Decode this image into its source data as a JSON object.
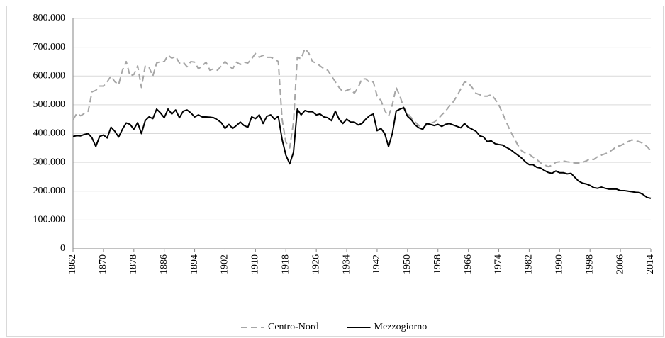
{
  "chart_data": {
    "type": "line",
    "x": [
      1862,
      1863,
      1864,
      1865,
      1866,
      1867,
      1868,
      1869,
      1870,
      1871,
      1872,
      1873,
      1874,
      1875,
      1876,
      1877,
      1878,
      1879,
      1880,
      1881,
      1882,
      1883,
      1884,
      1885,
      1886,
      1887,
      1888,
      1889,
      1890,
      1891,
      1892,
      1893,
      1894,
      1895,
      1896,
      1897,
      1898,
      1899,
      1900,
      1901,
      1902,
      1903,
      1904,
      1905,
      1906,
      1907,
      1908,
      1909,
      1910,
      1911,
      1912,
      1913,
      1914,
      1915,
      1916,
      1917,
      1918,
      1919,
      1920,
      1921,
      1922,
      1923,
      1924,
      1925,
      1926,
      1927,
      1928,
      1929,
      1930,
      1931,
      1932,
      1933,
      1934,
      1935,
      1936,
      1937,
      1938,
      1939,
      1940,
      1941,
      1942,
      1943,
      1944,
      1945,
      1946,
      1947,
      1948,
      1949,
      1950,
      1951,
      1952,
      1953,
      1954,
      1955,
      1956,
      1957,
      1958,
      1959,
      1960,
      1961,
      1962,
      1963,
      1964,
      1965,
      1966,
      1967,
      1968,
      1969,
      1970,
      1971,
      1972,
      1973,
      1974,
      1975,
      1976,
      1977,
      1978,
      1979,
      1980,
      1981,
      1982,
      1983,
      1984,
      1985,
      1986,
      1987,
      1988,
      1989,
      1990,
      1991,
      1992,
      1993,
      1994,
      1995,
      1996,
      1997,
      1998,
      1999,
      2000,
      2001,
      2002,
      2003,
      2004,
      2005,
      2006,
      2007,
      2008,
      2009,
      2010,
      2011,
      2012,
      2013,
      2014
    ],
    "series": [
      {
        "name": "Centro-Nord",
        "color": "#a6a6a6",
        "dashed": true,
        "values": [
          448000,
          470000,
          462000,
          470000,
          478000,
          545000,
          550000,
          565000,
          565000,
          580000,
          600000,
          580000,
          570000,
          620000,
          650000,
          600000,
          605000,
          635000,
          560000,
          635000,
          630000,
          600000,
          645000,
          650000,
          650000,
          672000,
          662000,
          668000,
          645000,
          648000,
          632000,
          650000,
          648000,
          625000,
          635000,
          648000,
          620000,
          625000,
          620000,
          635000,
          650000,
          635000,
          625000,
          648000,
          640000,
          648000,
          645000,
          660000,
          678000,
          665000,
          672000,
          665000,
          665000,
          660000,
          650000,
          450000,
          370000,
          350000,
          440000,
          665000,
          660000,
          695000,
          680000,
          650000,
          645000,
          635000,
          625000,
          620000,
          600000,
          580000,
          560000,
          545000,
          550000,
          555000,
          540000,
          560000,
          590000,
          590000,
          578000,
          580000,
          530000,
          515000,
          480000,
          460000,
          500000,
          560000,
          530000,
          490000,
          470000,
          455000,
          440000,
          428000,
          420000,
          430000,
          435000,
          440000,
          450000,
          465000,
          478000,
          495000,
          510000,
          530000,
          555000,
          580000,
          575000,
          560000,
          540000,
          535000,
          530000,
          530000,
          535000,
          520000,
          500000,
          470000,
          440000,
          410000,
          385000,
          360000,
          340000,
          332000,
          328000,
          318000,
          310000,
          298000,
          292000,
          285000,
          290000,
          300000,
          302000,
          305000,
          302000,
          300000,
          298000,
          298000,
          300000,
          305000,
          312000,
          310000,
          320000,
          325000,
          330000,
          335000,
          345000,
          355000,
          358000,
          365000,
          372000,
          378000,
          375000,
          372000,
          365000,
          355000,
          340000
        ]
      },
      {
        "name": "Mezzogiorno",
        "color": "#000000",
        "dashed": false,
        "values": [
          390000,
          393000,
          392000,
          397000,
          400000,
          385000,
          355000,
          390000,
          395000,
          385000,
          422000,
          408000,
          388000,
          415000,
          437000,
          432000,
          415000,
          438000,
          400000,
          445000,
          458000,
          452000,
          485000,
          472000,
          455000,
          485000,
          468000,
          482000,
          455000,
          478000,
          482000,
          472000,
          458000,
          465000,
          458000,
          458000,
          457000,
          455000,
          448000,
          438000,
          418000,
          432000,
          418000,
          428000,
          440000,
          428000,
          422000,
          458000,
          452000,
          465000,
          435000,
          460000,
          465000,
          450000,
          460000,
          380000,
          325000,
          295000,
          335000,
          485000,
          465000,
          480000,
          476000,
          476000,
          465000,
          468000,
          458000,
          455000,
          445000,
          478000,
          450000,
          435000,
          450000,
          440000,
          440000,
          430000,
          435000,
          450000,
          462000,
          468000,
          410000,
          418000,
          400000,
          355000,
          400000,
          478000,
          485000,
          490000,
          460000,
          448000,
          430000,
          420000,
          415000,
          435000,
          432000,
          428000,
          432000,
          425000,
          432000,
          435000,
          430000,
          425000,
          420000,
          435000,
          422000,
          415000,
          408000,
          392000,
          388000,
          372000,
          375000,
          365000,
          362000,
          360000,
          352000,
          345000,
          335000,
          325000,
          315000,
          302000,
          292000,
          292000,
          283000,
          280000,
          272000,
          265000,
          262000,
          270000,
          264000,
          264000,
          260000,
          262000,
          248000,
          235000,
          228000,
          225000,
          220000,
          212000,
          210000,
          214000,
          210000,
          207000,
          207000,
          207000,
          202000,
          202000,
          200000,
          198000,
          196000,
          195000,
          188000,
          178000,
          175000
        ]
      }
    ],
    "xlim": [
      1862,
      2014
    ],
    "xticks": [
      1862,
      1870,
      1878,
      1886,
      1894,
      1902,
      1910,
      1918,
      1926,
      1934,
      1942,
      1950,
      1958,
      1966,
      1974,
      1982,
      1990,
      1998,
      2006,
      2014
    ],
    "ylim": [
      0,
      800000
    ],
    "yticks": [
      0,
      {
        "value": 100000,
        "label": "100.000"
      },
      {
        "value": 200000,
        "label": "200.000"
      },
      {
        "value": 300000,
        "label": "300.000"
      },
      {
        "value": 400000,
        "label": "400.000"
      },
      {
        "value": 500000,
        "label": "500.000"
      },
      {
        "value": 600000,
        "label": "600.000"
      },
      {
        "value": 700000,
        "label": "700.000"
      },
      {
        "value": 800000,
        "label": "800.000"
      }
    ],
    "grid": true,
    "legend": "bottom"
  }
}
